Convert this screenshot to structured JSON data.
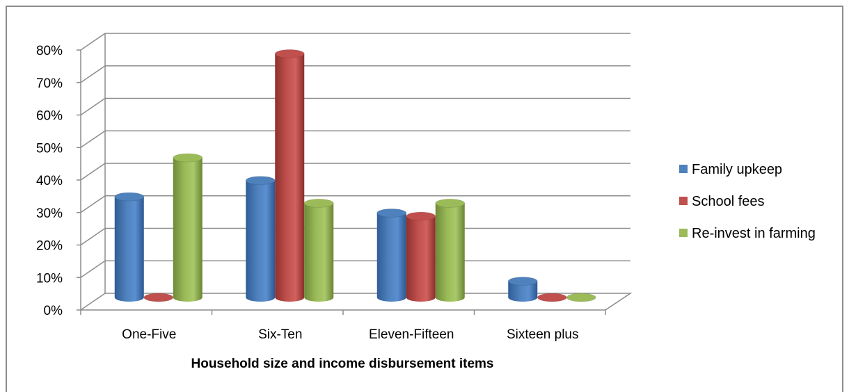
{
  "chart_data": {
    "type": "bar",
    "style": "3d-cylinder",
    "categories": [
      "One-Five",
      "Six-Ten",
      "Eleven-Fifteen",
      "Sixteen plus"
    ],
    "series": [
      {
        "name": "Family upkeep",
        "color": "#4f81bd",
        "values": [
          31,
          36,
          26,
          5
        ]
      },
      {
        "name": "School fees",
        "color": "#c0504d",
        "values": [
          0,
          75,
          25,
          0
        ]
      },
      {
        "name": "Re-invest in farming",
        "color": "#9bbb59",
        "values": [
          43,
          29,
          29,
          0
        ]
      }
    ],
    "yticks": [
      "0%",
      "10%",
      "20%",
      "30%",
      "40%",
      "50%",
      "60%",
      "70%",
      "80%"
    ],
    "ylim": [
      0,
      80
    ],
    "xlabel": "Household size and income disbursement items",
    "ylabel": "",
    "title": "",
    "grid": true,
    "legend_position": "right"
  }
}
